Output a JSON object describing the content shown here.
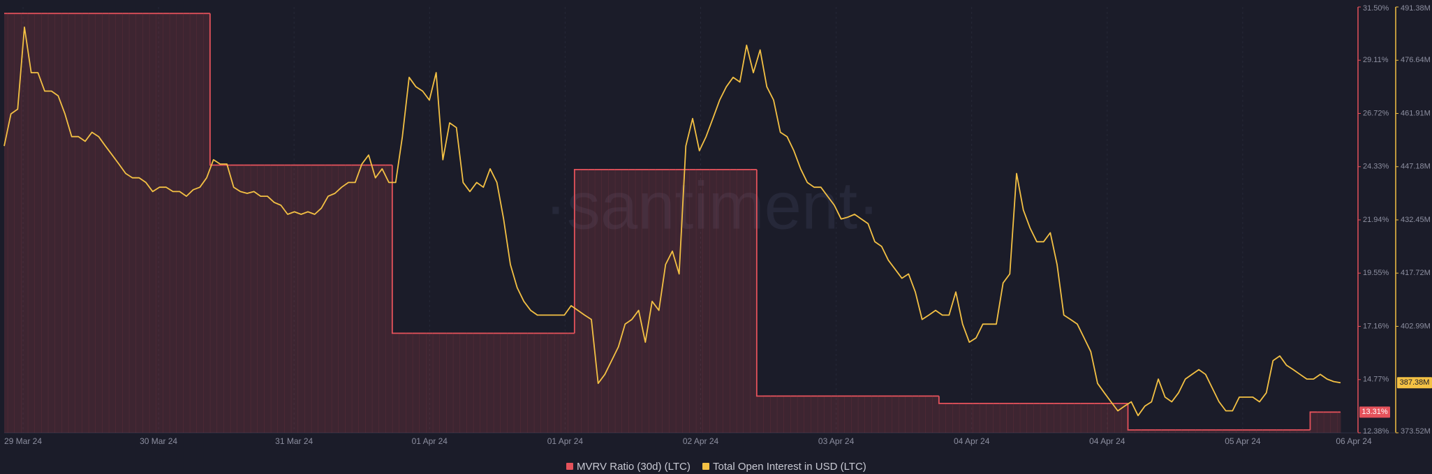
{
  "chart_data": {
    "type": "line",
    "watermark": "·santiment·",
    "x_tick_labels": [
      "29 Mar 24",
      "30 Mar 24",
      "31 Mar 24",
      "01 Apr 24",
      "01 Apr 24",
      "02 Apr 24",
      "03 Apr 24",
      "04 Apr 24",
      "04 Apr 24",
      "05 Apr 24",
      "06 Apr 24"
    ],
    "ylim": [
      12.38,
      31.5
    ],
    "yticks": [
      {
        "value": 31.5,
        "label": "31.50%"
      },
      {
        "value": 29.11,
        "label": "29.11%"
      },
      {
        "value": 26.72,
        "label": "26.72%"
      },
      {
        "value": 24.33,
        "label": "24.33%"
      },
      {
        "value": 21.94,
        "label": "21.94%"
      },
      {
        "value": 19.55,
        "label": "19.55%"
      },
      {
        "value": 17.16,
        "label": "17.16%"
      },
      {
        "value": 14.77,
        "label": "14.77%"
      },
      {
        "value": 12.38,
        "label": "12.38%"
      }
    ],
    "y2lim": [
      373.52,
      491.38
    ],
    "y2ticks": [
      {
        "value": 491.38,
        "label": "491.38M"
      },
      {
        "value": 476.64,
        "label": "476.64M"
      },
      {
        "value": 461.91,
        "label": "461.91M"
      },
      {
        "value": 447.18,
        "label": "447.18M"
      },
      {
        "value": 432.45,
        "label": "432.45M"
      },
      {
        "value": 417.72,
        "label": "417.72M"
      },
      {
        "value": 402.99,
        "label": "402.99M"
      },
      {
        "value": 373.52,
        "label": "373.52M"
      }
    ],
    "series": [
      {
        "name": "MVRV Ratio (30d) (LTC)",
        "color": "#e5525b",
        "axis": "y",
        "style": "step",
        "last_value_label": "13.31%",
        "values": [
          31.21,
          31.21,
          31.21,
          31.21,
          31.21,
          31.21,
          31.21,
          31.21,
          31.21,
          31.21,
          31.21,
          31.21,
          31.21,
          31.21,
          31.21,
          31.21,
          31.21,
          31.21,
          31.21,
          31.21,
          31.21,
          31.21,
          31.21,
          31.21,
          31.21,
          31.21,
          31.21,
          31.21,
          31.21,
          31.21,
          31.21,
          24.4,
          24.4,
          24.4,
          24.4,
          24.4,
          24.4,
          24.4,
          24.4,
          24.4,
          24.4,
          24.4,
          24.4,
          24.4,
          24.4,
          24.4,
          24.4,
          24.4,
          24.4,
          24.4,
          24.4,
          24.4,
          24.4,
          24.4,
          24.4,
          24.4,
          24.4,
          24.4,
          16.85,
          16.85,
          16.85,
          16.85,
          16.85,
          16.85,
          16.85,
          16.85,
          16.85,
          16.85,
          16.85,
          16.85,
          16.85,
          16.85,
          16.85,
          16.85,
          16.85,
          16.85,
          16.85,
          16.85,
          16.85,
          16.85,
          16.85,
          16.85,
          16.85,
          16.85,
          16.85,
          24.2,
          24.2,
          24.2,
          24.2,
          24.2,
          24.2,
          24.2,
          24.2,
          24.2,
          24.2,
          24.2,
          24.2,
          24.2,
          24.2,
          24.2,
          24.2,
          24.2,
          24.2,
          24.2,
          24.2,
          24.2,
          24.2,
          24.2,
          24.2,
          24.2,
          24.2,
          24.2,
          14.03,
          14.03,
          14.03,
          14.03,
          14.03,
          14.03,
          14.03,
          14.03,
          14.03,
          14.03,
          14.03,
          14.03,
          14.03,
          14.03,
          14.03,
          14.03,
          14.03,
          14.03,
          14.03,
          14.03,
          14.03,
          14.03,
          14.03,
          14.03,
          14.03,
          14.03,
          14.03,
          13.7,
          13.7,
          13.7,
          13.7,
          13.7,
          13.7,
          13.7,
          13.7,
          13.7,
          13.7,
          13.7,
          13.7,
          13.7,
          13.7,
          13.7,
          13.7,
          13.7,
          13.7,
          13.7,
          13.7,
          13.7,
          13.7,
          13.7,
          13.7,
          13.7,
          13.7,
          13.7,
          13.7,
          12.51,
          12.51,
          12.51,
          12.51,
          12.51,
          12.51,
          12.51,
          12.51,
          12.51,
          12.51,
          12.51,
          12.51,
          12.51,
          12.51,
          12.51,
          12.51,
          12.51,
          12.51,
          12.51,
          12.51,
          12.51,
          12.51,
          12.51,
          12.51,
          12.51,
          12.51,
          12.51,
          13.31,
          13.31,
          13.31,
          13.31,
          13.31
        ]
      },
      {
        "name": "Total Open Interest in USD (LTC)",
        "color": "#f4c144",
        "axis": "y2",
        "style": "line",
        "last_value_label": "387.38M",
        "values": [
          452.9,
          461.8,
          463.1,
          485.8,
          473.2,
          473.2,
          468.1,
          468.1,
          466.8,
          461.8,
          455.5,
          455.5,
          454.2,
          456.7,
          455.5,
          452.9,
          450.4,
          447.9,
          445.3,
          444.1,
          444.1,
          442.8,
          440.3,
          441.5,
          441.5,
          440.3,
          440.3,
          439.0,
          440.8,
          441.5,
          444.1,
          449.1,
          447.9,
          447.9,
          441.5,
          440.3,
          439.8,
          440.3,
          439.0,
          439.0,
          437.3,
          436.5,
          434.0,
          434.7,
          434.0,
          434.7,
          434.0,
          435.7,
          439.0,
          439.8,
          441.5,
          442.8,
          442.8,
          447.9,
          450.4,
          444.1,
          446.6,
          442.8,
          442.8,
          455.5,
          471.9,
          469.3,
          468.1,
          465.6,
          473.2,
          449.1,
          459.3,
          458.0,
          442.8,
          440.3,
          442.8,
          441.5,
          446.6,
          442.8,
          432.7,
          420.1,
          413.7,
          409.9,
          407.4,
          406.1,
          406.1,
          406.1,
          406.1,
          406.1,
          408.7,
          407.4,
          406.1,
          404.9,
          387.2,
          389.7,
          393.5,
          397.3,
          403.6,
          404.9,
          407.4,
          398.6,
          409.9,
          407.4,
          420.1,
          423.8,
          417.5,
          452.9,
          460.5,
          451.6,
          455.5,
          460.5,
          465.6,
          469.3,
          471.9,
          470.6,
          480.8,
          473.2,
          479.5,
          469.3,
          465.6,
          456.7,
          455.5,
          451.6,
          446.6,
          442.8,
          441.5,
          441.5,
          439.0,
          436.5,
          432.7,
          433.2,
          434.0,
          432.7,
          431.4,
          426.4,
          425.1,
          421.3,
          418.8,
          416.3,
          417.5,
          412.5,
          404.9,
          406.1,
          407.4,
          406.1,
          406.1,
          412.5,
          403.6,
          398.6,
          399.8,
          403.6,
          403.6,
          403.6,
          415.0,
          417.5,
          445.3,
          435.2,
          430.2,
          426.4,
          426.4,
          428.9,
          420.1,
          406.1,
          404.9,
          403.6,
          399.8,
          396.0,
          387.2,
          384.6,
          382.1,
          379.6,
          380.9,
          382.1,
          378.3,
          380.9,
          382.1,
          388.4,
          383.4,
          382.1,
          384.6,
          388.4,
          389.7,
          391.0,
          389.7,
          385.9,
          382.1,
          379.6,
          379.6,
          383.4,
          383.4,
          383.4,
          382.1,
          384.6,
          393.5,
          394.8,
          392.2,
          391.0,
          389.7,
          388.4,
          388.4,
          389.7,
          388.4,
          387.7,
          387.38
        ]
      }
    ]
  }
}
